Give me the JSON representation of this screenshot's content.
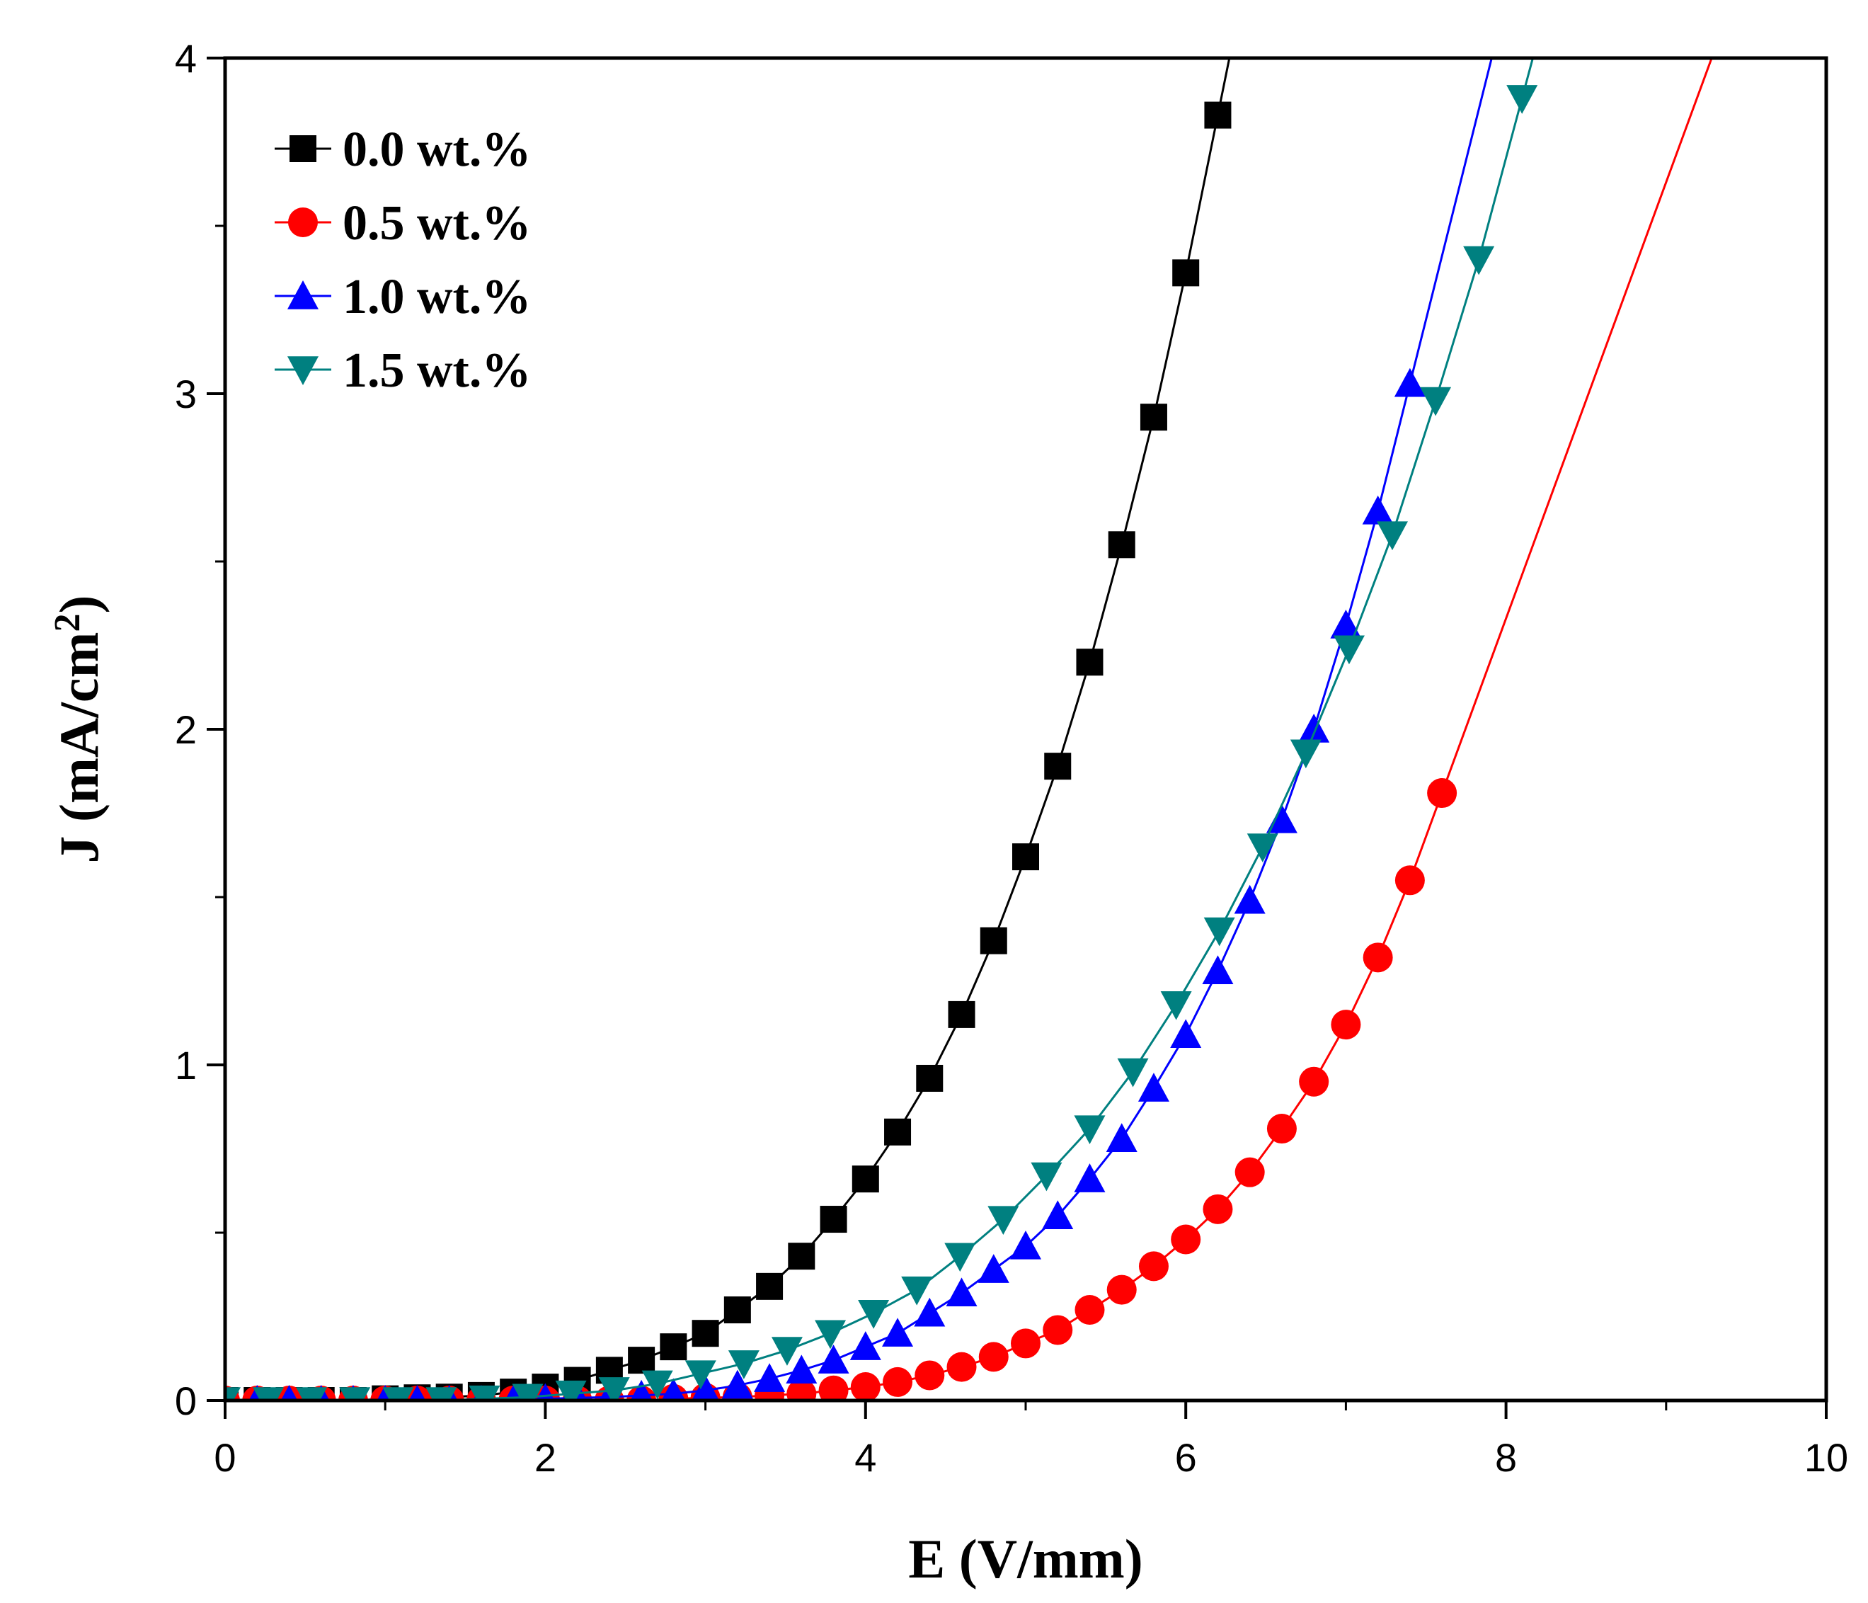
{
  "chart_data": {
    "type": "line",
    "title": "",
    "xlabel": "E (V/mm)",
    "ylabel": "J (mA/cm²)",
    "ylabel_main": "J (mA/cm",
    "ylabel_sup": "2",
    "ylabel_close": ")",
    "xlim": [
      0,
      10
    ],
    "ylim": [
      0,
      4
    ],
    "xticks": [
      0,
      2,
      4,
      6,
      8,
      10
    ],
    "yticks": [
      0,
      1,
      2,
      3,
      4
    ],
    "xtick_labels": [
      "0",
      "2",
      "4",
      "6",
      "8",
      "10"
    ],
    "ytick_labels": [
      "0",
      "1",
      "2",
      "3",
      "4"
    ],
    "grid": false,
    "legend_position": "top-left",
    "series": [
      {
        "name": "0.0 wt.%",
        "color": "#000000",
        "marker": "square",
        "x": [
          0.0,
          0.2,
          0.4,
          0.6,
          0.8,
          1.0,
          1.2,
          1.4,
          1.6,
          1.8,
          2.0,
          2.2,
          2.4,
          2.6,
          2.8,
          3.0,
          3.2,
          3.4,
          3.6,
          3.8,
          4.0,
          4.2,
          4.4,
          4.6,
          4.8,
          5.0,
          5.2,
          5.4,
          5.6,
          5.8,
          6.0,
          6.2
        ],
        "y": [
          0.0,
          0.0,
          0.0,
          0.0,
          0.0,
          0.005,
          0.008,
          0.01,
          0.015,
          0.025,
          0.04,
          0.06,
          0.09,
          0.12,
          0.16,
          0.2,
          0.27,
          0.34,
          0.43,
          0.54,
          0.66,
          0.8,
          0.96,
          1.15,
          1.37,
          1.62,
          1.89,
          2.2,
          2.55,
          2.93,
          3.36,
          3.83
        ]
      },
      {
        "name": "0.5 wt.%",
        "color": "#ff0000",
        "marker": "circle",
        "x": [
          0.0,
          0.2,
          0.4,
          0.6,
          0.8,
          1.0,
          1.2,
          1.4,
          1.6,
          1.8,
          2.0,
          2.2,
          2.4,
          2.6,
          2.8,
          3.0,
          3.2,
          3.4,
          3.6,
          3.8,
          4.0,
          4.2,
          4.4,
          4.6,
          4.8,
          5.0,
          5.2,
          5.4,
          5.6,
          5.8,
          6.0,
          6.2,
          6.4,
          6.6,
          6.8,
          7.0,
          7.2,
          7.4,
          7.6
        ],
        "y": [
          0.0,
          0.0,
          0.0,
          0.0,
          0.0,
          0.0,
          0.0,
          0.0,
          0.0,
          0.0,
          0.0,
          0.0,
          0.0,
          0.0,
          0.005,
          0.008,
          0.01,
          0.015,
          0.02,
          0.03,
          0.04,
          0.055,
          0.075,
          0.1,
          0.13,
          0.17,
          0.21,
          0.27,
          0.33,
          0.4,
          0.48,
          0.57,
          0.68,
          0.81,
          0.95,
          1.12,
          1.32,
          1.55,
          1.81
        ]
      },
      {
        "name": "1.0 wt.%",
        "color": "#0000ff",
        "marker": "triangle-up",
        "x": [
          0.0,
          0.2,
          0.4,
          0.6,
          0.8,
          1.0,
          1.2,
          1.4,
          1.6,
          1.8,
          2.0,
          2.2,
          2.4,
          2.6,
          2.8,
          3.0,
          3.2,
          3.4,
          3.6,
          3.8,
          4.0,
          4.2,
          4.4,
          4.6,
          4.8,
          5.0,
          5.2,
          5.4,
          5.6,
          5.8,
          6.0,
          6.2,
          6.4,
          6.6,
          6.8,
          7.0,
          7.2,
          7.4
        ],
        "y": [
          0.0,
          0.0,
          0.0,
          0.0,
          0.0,
          0.0,
          0.0,
          0.0,
          0.0,
          0.0,
          0.005,
          0.008,
          0.01,
          0.015,
          0.02,
          0.03,
          0.045,
          0.065,
          0.09,
          0.12,
          0.16,
          0.2,
          0.26,
          0.32,
          0.39,
          0.46,
          0.55,
          0.66,
          0.78,
          0.93,
          1.09,
          1.28,
          1.49,
          1.73,
          2.0,
          2.31,
          2.65,
          3.03
        ]
      },
      {
        "name": "1.5 wt.%",
        "color": "#008080",
        "marker": "triangle-down",
        "x": [
          0.0,
          0.27,
          0.54,
          0.81,
          1.08,
          1.35,
          1.62,
          1.89,
          2.16,
          2.43,
          2.7,
          2.97,
          3.24,
          3.51,
          3.78,
          4.05,
          4.32,
          4.59,
          4.86,
          5.13,
          5.4,
          5.67,
          5.94,
          6.21,
          6.48,
          6.75,
          7.02,
          7.29,
          7.56,
          7.83,
          8.1
        ],
        "y": [
          0.0,
          0.0,
          0.0,
          0.0,
          0.0,
          0.0,
          0.005,
          0.01,
          0.02,
          0.03,
          0.05,
          0.08,
          0.11,
          0.15,
          0.2,
          0.26,
          0.33,
          0.43,
          0.54,
          0.67,
          0.81,
          0.98,
          1.18,
          1.4,
          1.65,
          1.93,
          2.24,
          2.58,
          2.98,
          3.4,
          3.88
        ]
      }
    ]
  }
}
